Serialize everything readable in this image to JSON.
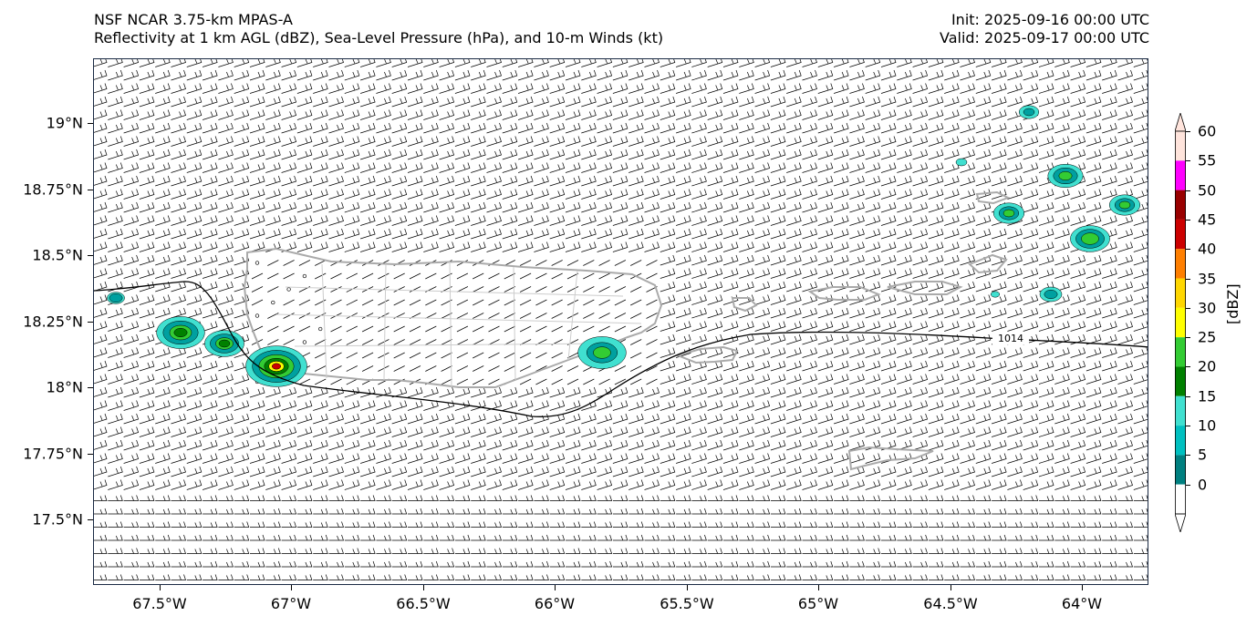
{
  "title": {
    "line1": "NSF NCAR 3.75-km MPAS-A",
    "line2": "Reflectivity at 1 km AGL (dBZ), Sea-Level Pressure (hPa), and 10-m Winds (kt)",
    "init": "Init: 2025-09-16 00:00 UTC",
    "valid": "Valid: 2025-09-17 00:00 UTC"
  },
  "map": {
    "lon_range": [
      -67.75,
      -63.75
    ],
    "lat_range": [
      17.25,
      19.25
    ],
    "lat_ticks": [
      "19°N",
      "18.75°N",
      "18.5°N",
      "18.25°N",
      "18°N",
      "17.75°N",
      "17.5°N"
    ],
    "lon_ticks": [
      "67.5°W",
      "67°W",
      "66.5°W",
      "66°W",
      "65.5°W",
      "65°W",
      "64.5°W",
      "64°W"
    ],
    "isobar_label": "1014",
    "coast_color": "#aaaaaa",
    "isobar_color": "#000000"
  },
  "colorbar": {
    "unit": "[dBZ]",
    "ticks": [
      "60",
      "55",
      "50",
      "45",
      "40",
      "35",
      "30",
      "25",
      "20",
      "15",
      "10",
      "5",
      "0"
    ],
    "colors": [
      "#ffe4dc",
      "#ff00ff",
      "#990000",
      "#cc0000",
      "#ff7f00",
      "#ffd700",
      "#ffff00",
      "#33cc33",
      "#008000",
      "#40e0d0",
      "#00c0c0",
      "#008080",
      "#ffffff"
    ]
  }
}
